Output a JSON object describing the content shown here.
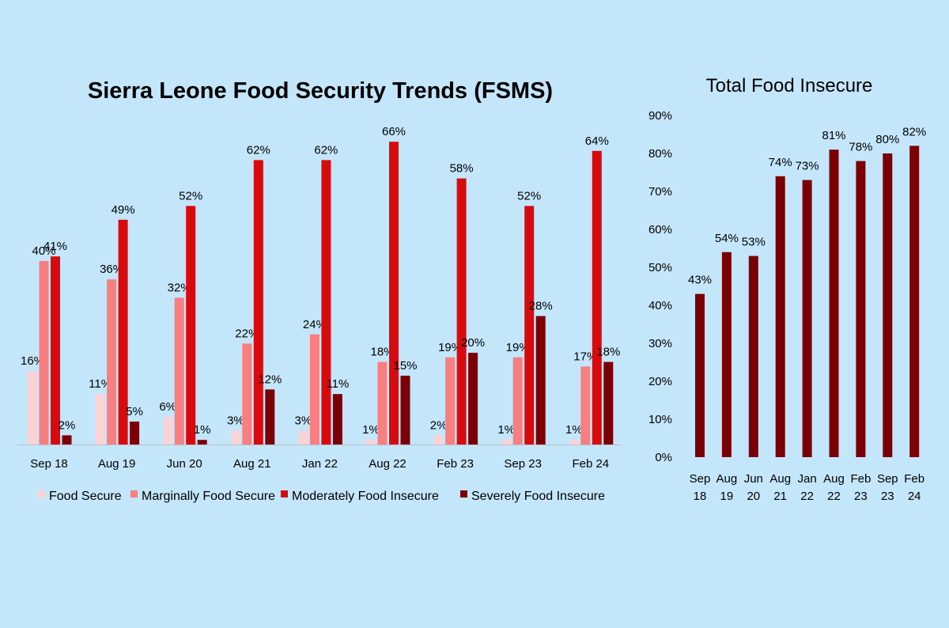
{
  "chart_data": [
    {
      "type": "bar",
      "title": "Sierra Leone Food Security Trends (FSMS)",
      "categories": [
        "Sep 18",
        "Aug 19",
        "Jun 20",
        "Aug 21",
        "Jan 22",
        "Aug 22",
        "Feb 23",
        "Sep 23",
        "Feb 24"
      ],
      "series": [
        {
          "name": "Food Secure",
          "color": "#fbd3d6",
          "values": [
            16,
            11,
            6,
            3,
            3,
            1,
            2,
            1,
            1
          ]
        },
        {
          "name": "Marginally Food Secure",
          "color": "#f87e80",
          "values": [
            40,
            36,
            32,
            22,
            24,
            18,
            19,
            19,
            17
          ]
        },
        {
          "name": "Moderately Food Insecure",
          "color": "#d80a0d",
          "values": [
            41,
            49,
            52,
            62,
            62,
            66,
            58,
            52,
            64
          ]
        },
        {
          "name": "Severely Food Insecure",
          "color": "#7a0006",
          "values": [
            2,
            5,
            1,
            12,
            11,
            15,
            20,
            28,
            18
          ]
        }
      ],
      "value_suffix": "%",
      "ylim": [
        0,
        70
      ],
      "grid": false,
      "legend": "bottom"
    },
    {
      "type": "bar",
      "title": "Total Food Insecure",
      "categories": [
        [
          "Sep",
          "18"
        ],
        [
          "Aug",
          "19"
        ],
        [
          "Jun",
          "20"
        ],
        [
          "Aug",
          "21"
        ],
        [
          "Jan",
          "22"
        ],
        [
          "Aug",
          "22"
        ],
        [
          "Feb",
          "23"
        ],
        [
          "Sep",
          "23"
        ],
        [
          "Feb",
          "24"
        ]
      ],
      "values": [
        43,
        54,
        53,
        74,
        73,
        81,
        78,
        80,
        82
      ],
      "color": "#7a0006",
      "value_suffix": "%",
      "ylim": [
        0,
        90
      ],
      "yticks": [
        "0%",
        "10%",
        "20%",
        "30%",
        "40%",
        "50%",
        "60%",
        "70%",
        "80%",
        "90%"
      ],
      "grid": false
    }
  ]
}
